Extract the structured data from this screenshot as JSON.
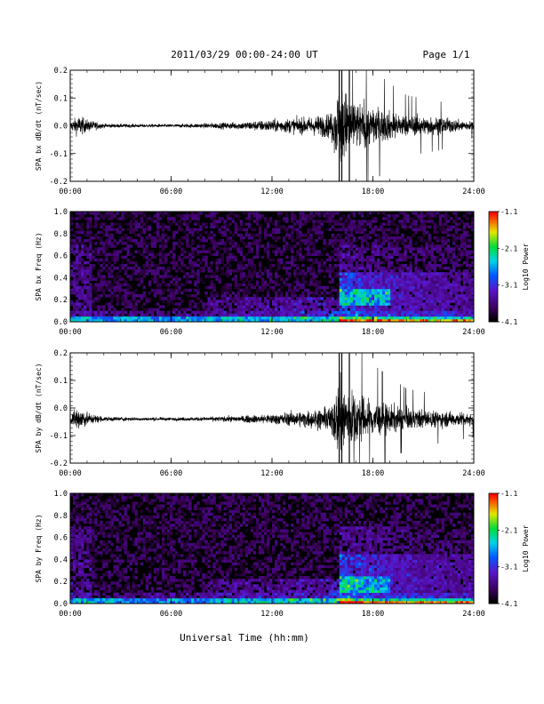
{
  "header": {
    "title": "2011/03/29  00:00-24:00 UT",
    "page": "Page 1/1"
  },
  "footer": {
    "xlabel": "Universal Time (hh:mm)"
  },
  "chart_data": [
    {
      "type": "line",
      "ylabel": "SPA bx dB/dt (nT/sec)",
      "xlim": [
        "00:00",
        "24:00"
      ],
      "xticks": [
        "00:00",
        "06:00",
        "12:00",
        "18:00",
        "24:00"
      ],
      "ylim": [
        -0.2,
        0.2
      ],
      "yticks": [
        "-0.2",
        "-0.1",
        "0.0",
        "0.1",
        "0.2"
      ],
      "series": [
        {
          "x_hours": [
            0,
            0.5,
            1,
            2,
            4,
            6,
            8,
            10,
            12,
            14,
            15.5,
            16,
            17,
            18,
            19,
            20,
            21,
            22,
            23,
            24
          ],
          "envelope": [
            0.02,
            0.05,
            0.03,
            0.01,
            0.008,
            0.008,
            0.012,
            0.018,
            0.03,
            0.04,
            0.06,
            0.2,
            0.12,
            0.09,
            0.07,
            0.05,
            0.045,
            0.04,
            0.03,
            0.02
          ],
          "baseline": 0.0
        }
      ]
    },
    {
      "type": "heatmap",
      "ylabel": "SPA bx Freq (Hz)",
      "xlim": [
        "00:00",
        "24:00"
      ],
      "xticks": [
        "00:00",
        "06:00",
        "12:00",
        "18:00",
        "24:00"
      ],
      "ylim": [
        0.0,
        1.0
      ],
      "yticks": [
        "0.0",
        "0.2",
        "0.4",
        "0.6",
        "0.8",
        "1.0"
      ],
      "colorbar": {
        "label": "Log10 Power",
        "range": [
          -4.1,
          -1.1
        ],
        "ticks": [
          "-1.1",
          "-2.1",
          "-3.1",
          "-4.1"
        ]
      }
    },
    {
      "type": "line",
      "ylabel": "SPA by dB/dt (nT/sec)",
      "xlim": [
        "00:00",
        "24:00"
      ],
      "xticks": [
        "00:00",
        "06:00",
        "12:00",
        "18:00",
        "24:00"
      ],
      "ylim": [
        -0.2,
        0.2
      ],
      "yticks": [
        "-0.2",
        "-0.1",
        "0.0",
        "0.1",
        "0.2"
      ],
      "series": [
        {
          "x_hours": [
            0,
            0.5,
            1,
            2,
            4,
            6,
            8,
            10,
            12,
            14,
            15.5,
            16,
            17,
            18,
            19,
            20,
            21,
            22,
            23,
            24
          ],
          "envelope": [
            0.02,
            0.07,
            0.03,
            0.012,
            0.008,
            0.008,
            0.01,
            0.015,
            0.025,
            0.04,
            0.06,
            0.2,
            0.12,
            0.09,
            0.07,
            0.05,
            0.045,
            0.04,
            0.035,
            0.03
          ],
          "baseline": -0.04
        }
      ]
    },
    {
      "type": "heatmap",
      "ylabel": "SPA by Freq (Hz)",
      "xlim": [
        "00:00",
        "24:00"
      ],
      "xticks": [
        "00:00",
        "06:00",
        "12:00",
        "18:00",
        "24:00"
      ],
      "ylim": [
        0.0,
        1.0
      ],
      "yticks": [
        "0.0",
        "0.2",
        "0.4",
        "0.6",
        "0.8",
        "1.0"
      ],
      "colorbar": {
        "label": "Log10 Power",
        "range": [
          -4.1,
          -1.1
        ],
        "ticks": [
          "-1.1",
          "-2.1",
          "-3.1",
          "-4.1"
        ]
      }
    }
  ]
}
